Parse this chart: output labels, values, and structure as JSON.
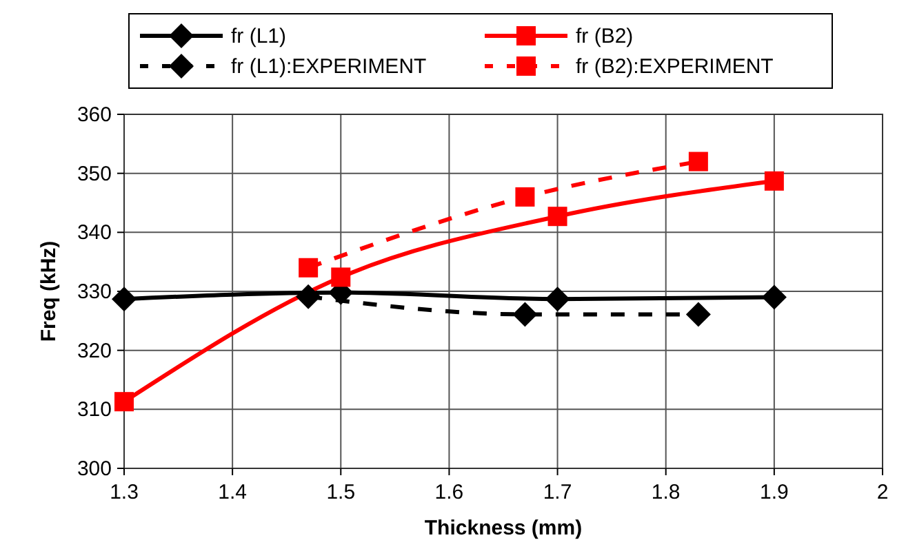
{
  "chart_data": {
    "type": "line",
    "xlabel": "Thickness (mm)",
    "ylabel": "Freq (kHz)",
    "xlim": [
      1.3,
      2
    ],
    "xticks": [
      1.3,
      1.4,
      1.5,
      1.6,
      1.7,
      1.8,
      1.9,
      2
    ],
    "ylim": [
      300,
      360
    ],
    "yticks": [
      300,
      310,
      320,
      330,
      340,
      350,
      360
    ],
    "grid": true,
    "legend": "top",
    "series": [
      {
        "name": "fr (L1)",
        "color": "#000000",
        "x": [
          1.3,
          1.5,
          1.7,
          1.9
        ],
        "values": [
          328.7,
          329.8,
          328.7,
          329.0
        ],
        "marker": "diamond",
        "line_style": "solid"
      },
      {
        "name": "fr (B2)",
        "color": "#ff0000",
        "x": [
          1.3,
          1.5,
          1.7,
          1.9
        ],
        "values": [
          311.3,
          332.4,
          342.7,
          348.7
        ],
        "marker": "square",
        "line_style": "solid"
      },
      {
        "name": "fr (L1):EXPERIMENT",
        "color": "#000000",
        "x": [
          1.47,
          1.67,
          1.83
        ],
        "values": [
          329.1,
          326.1,
          326.1
        ],
        "marker": "diamond",
        "line_style": "dashed"
      },
      {
        "name": "fr (B2):EXPERIMENT",
        "color": "#ff0000",
        "x": [
          1.47,
          1.67,
          1.83
        ],
        "values": [
          334.0,
          346.0,
          352.0
        ],
        "marker": "square",
        "line_style": "dashed"
      }
    ]
  }
}
